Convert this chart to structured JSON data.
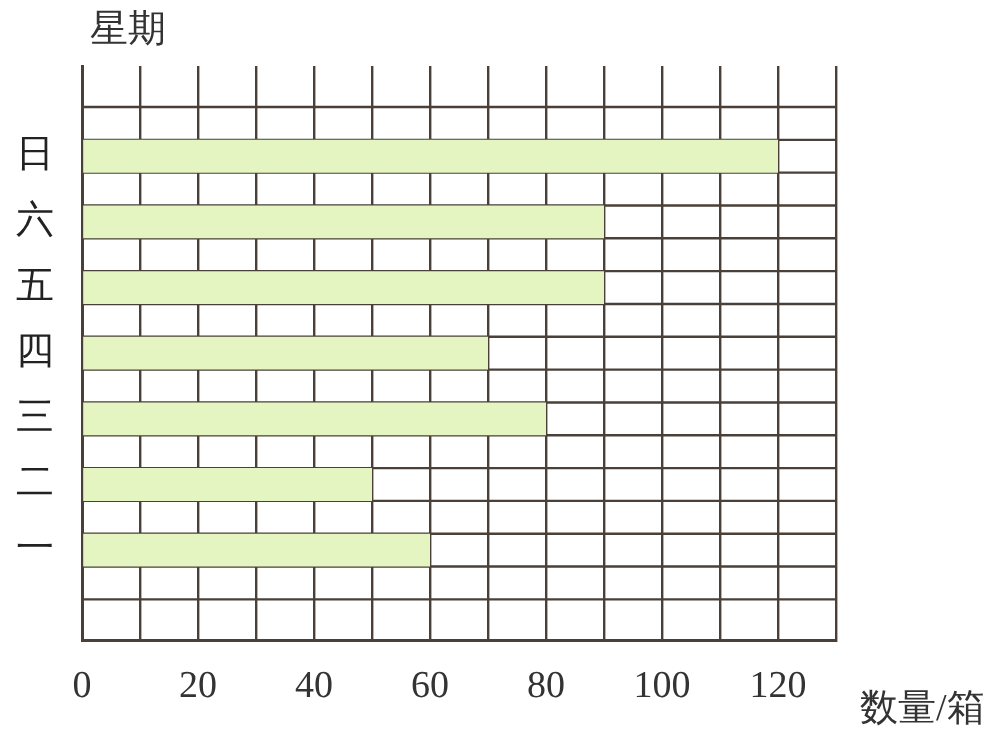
{
  "chart_data": {
    "type": "bar",
    "orientation": "horizontal",
    "ylabel": "星期",
    "xlabel": "数量/箱",
    "categories": [
      "日",
      "六",
      "五",
      "四",
      "三",
      "二",
      "一"
    ],
    "values": [
      120,
      90,
      90,
      70,
      80,
      50,
      60
    ],
    "color": "#e4f5c2",
    "xlim": [
      0,
      130
    ],
    "xticks": [
      0,
      {
        "value": 10,
        "label": null
      },
      20,
      {
        "value": 30,
        "label": null
      },
      40,
      {
        "value": 50,
        "label": null
      },
      60,
      {
        "value": 70,
        "label": null
      },
      80,
      {
        "value": 90,
        "label": null
      },
      100,
      {
        "value": 110,
        "label": null
      },
      120,
      {
        "value": 130,
        "label": null
      }
    ],
    "grid": true,
    "legend": false
  }
}
